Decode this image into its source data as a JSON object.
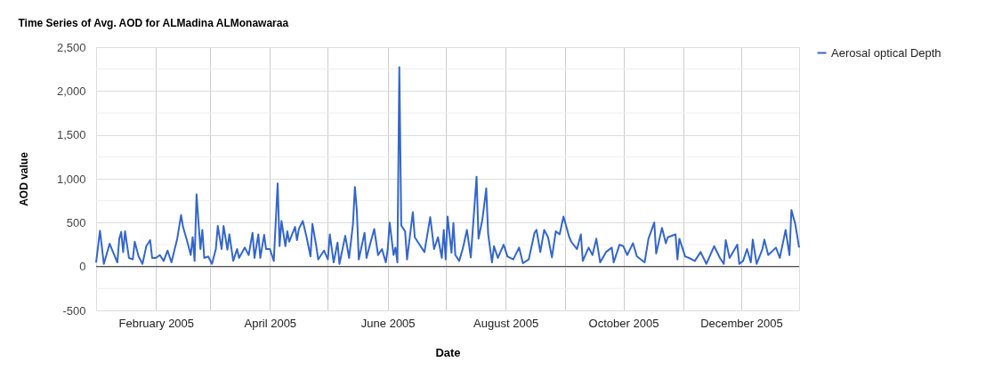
{
  "chart_data": {
    "type": "line",
    "title": "Time Series of Avg. AOD for ALMadina ALMonawaraa",
    "xlabel": "Date",
    "ylabel": "AOD value",
    "xlim": [
      "2005-01-01",
      "2005-12-31"
    ],
    "xticks": [
      {
        "value": "2005-02-01",
        "label": "February 2005"
      },
      {
        "value": "2005-03-01",
        "label": null
      },
      {
        "value": "2005-04-01",
        "label": "April 2005"
      },
      {
        "value": "2005-05-01",
        "label": null
      },
      {
        "value": "2005-06-01",
        "label": "June 2005"
      },
      {
        "value": "2005-07-01",
        "label": null
      },
      {
        "value": "2005-08-01",
        "label": "August 2005"
      },
      {
        "value": "2005-09-01",
        "label": null
      },
      {
        "value": "2005-10-01",
        "label": "October 2005"
      },
      {
        "value": "2005-11-01",
        "label": null
      },
      {
        "value": "2005-12-01",
        "label": "December 2005"
      }
    ],
    "ylim": [
      -500,
      2500
    ],
    "yticks": [
      {
        "value": -500,
        "label": "-500"
      },
      {
        "value": -250,
        "label": null
      },
      0,
      {
        "value": 250,
        "label": null
      },
      500,
      {
        "value": 750,
        "label": null
      },
      {
        "value": 1000,
        "label": "1,000"
      },
      {
        "value": 1250,
        "label": null
      },
      {
        "value": 1500,
        "label": "1,500"
      },
      {
        "value": 1750,
        "label": null
      },
      {
        "value": 2000,
        "label": "2,000"
      },
      {
        "value": 2250,
        "label": null
      },
      {
        "value": 2500,
        "label": "2,500"
      }
    ],
    "grid": true,
    "legend": "top right",
    "line_style": "solid",
    "ref_lines": [
      {
        "axis": "y",
        "value": 0,
        "color": "#333333"
      }
    ],
    "x": [
      "2005-01-01",
      "2005-01-03",
      "2005-01-05",
      "2005-01-07",
      "2005-01-08",
      "2005-01-12",
      "2005-01-13",
      "2005-01-14",
      "2005-01-15",
      "2005-01-16",
      "2005-01-18",
      "2005-01-20",
      "2005-01-21",
      "2005-01-23",
      "2005-01-25",
      "2005-01-27",
      "2005-01-29",
      "2005-01-30",
      "2005-02-01",
      "2005-02-03",
      "2005-02-05",
      "2005-02-07",
      "2005-02-09",
      "2005-02-12",
      "2005-02-14",
      "2005-02-15",
      "2005-02-17",
      "2005-02-19",
      "2005-02-20",
      "2005-02-21",
      "2005-02-22",
      "2005-02-24",
      "2005-02-25",
      "2005-02-26",
      "2005-02-28",
      "2005-03-02",
      "2005-03-04",
      "2005-03-05",
      "2005-03-07",
      "2005-03-08",
      "2005-03-10",
      "2005-03-11",
      "2005-03-13",
      "2005-03-15",
      "2005-03-16",
      "2005-03-19",
      "2005-03-21",
      "2005-03-23",
      "2005-03-24",
      "2005-03-26",
      "2005-03-27",
      "2005-03-29",
      "2005-03-30",
      "2005-04-01",
      "2005-04-03",
      "2005-04-05",
      "2005-04-06",
      "2005-04-07",
      "2005-04-09",
      "2005-04-10",
      "2005-04-11",
      "2005-04-14",
      "2005-04-15",
      "2005-04-16",
      "2005-04-18",
      "2005-04-20",
      "2005-04-22",
      "2005-04-23",
      "2005-04-25",
      "2005-04-26",
      "2005-04-29",
      "2005-05-01",
      "2005-05-02",
      "2005-05-04",
      "2005-05-06",
      "2005-05-07",
      "2005-05-10",
      "2005-05-12",
      "2005-05-14",
      "2005-05-15",
      "2005-05-16",
      "2005-05-17",
      "2005-05-20",
      "2005-05-21",
      "2005-05-23",
      "2005-05-25",
      "2005-05-27",
      "2005-05-29",
      "2005-05-31",
      "2005-06-01",
      "2005-06-02",
      "2005-06-04",
      "2005-06-05",
      "2005-06-06",
      "2005-06-07",
      "2005-06-08",
      "2005-06-10",
      "2005-06-11",
      "2005-06-14",
      "2005-06-15",
      "2005-06-17",
      "2005-06-20",
      "2005-06-23",
      "2005-06-25",
      "2005-06-27",
      "2005-06-29",
      "2005-06-30",
      "2005-07-01",
      "2005-07-02",
      "2005-07-04",
      "2005-07-05",
      "2005-07-06",
      "2005-07-08",
      "2005-07-10",
      "2005-07-12",
      "2005-07-14",
      "2005-07-17",
      "2005-07-18",
      "2005-07-20",
      "2005-07-22",
      "2005-07-23",
      "2005-07-25",
      "2005-07-26",
      "2005-07-28",
      "2005-07-31",
      "2005-08-02",
      "2005-08-05",
      "2005-08-08",
      "2005-08-10",
      "2005-08-13",
      "2005-08-16",
      "2005-08-17",
      "2005-08-19",
      "2005-08-21",
      "2005-08-23",
      "2005-08-25",
      "2005-08-27",
      "2005-08-29",
      "2005-08-31",
      "2005-09-03",
      "2005-09-04",
      "2005-09-07",
      "2005-09-09",
      "2005-09-10",
      "2005-09-13",
      "2005-09-15",
      "2005-09-17",
      "2005-09-19",
      "2005-09-22",
      "2005-09-25",
      "2005-09-26",
      "2005-09-29",
      "2005-10-01",
      "2005-10-03",
      "2005-10-06",
      "2005-10-08",
      "2005-10-12",
      "2005-10-14",
      "2005-10-17",
      "2005-10-18",
      "2005-10-21",
      "2005-10-23",
      "2005-10-24",
      "2005-10-28",
      "2005-10-29",
      "2005-10-30",
      "2005-11-02",
      "2005-11-04",
      "2005-11-07",
      "2005-11-10",
      "2005-11-13",
      "2005-11-17",
      "2005-11-20",
      "2005-11-22",
      "2005-11-23",
      "2005-11-25",
      "2005-11-29",
      "2005-11-30",
      "2005-12-02",
      "2005-12-04",
      "2005-12-06",
      "2005-12-07",
      "2005-12-09",
      "2005-12-12",
      "2005-12-13",
      "2005-12-15",
      "2005-12-19",
      "2005-12-21",
      "2005-12-22",
      "2005-12-24",
      "2005-12-26",
      "2005-12-27",
      "2005-12-29",
      "2005-12-31"
    ],
    "series": [
      {
        "name": "Aerosal optical Depth",
        "color": "#3366cc",
        "values": [
          47,
          408,
          30,
          182,
          260,
          47,
          317,
          394,
          165,
          401,
          98,
          81,
          283,
          115,
          30,
          232,
          300,
          98,
          98,
          131,
          64,
          182,
          47,
          317,
          586,
          452,
          300,
          131,
          334,
          64,
          822,
          199,
          418,
          98,
          115,
          30,
          199,
          462,
          199,
          462,
          192,
          367,
          64,
          199,
          98,
          216,
          131,
          384,
          98,
          367,
          98,
          361,
          199,
          199,
          64,
          947,
          232,
          519,
          232,
          401,
          283,
          452,
          300,
          428,
          519,
          334,
          115,
          485,
          232,
          81,
          182,
          81,
          367,
          47,
          273,
          30,
          350,
          98,
          485,
          907,
          637,
          81,
          384,
          98,
          266,
          428,
          131,
          199,
          47,
          199,
          502,
          131,
          216,
          47,
          2271,
          468,
          401,
          81,
          620,
          334,
          266,
          165,
          563,
          199,
          334,
          98,
          418,
          81,
          570,
          158,
          495,
          131,
          64,
          216,
          418,
          104,
          1024,
          317,
          536,
          890,
          367,
          47,
          232,
          98,
          249,
          115,
          81,
          216,
          37,
          81,
          384,
          418,
          165,
          418,
          334,
          104,
          401,
          367,
          570,
          334,
          283,
          199,
          367,
          64,
          216,
          131,
          317,
          47,
          165,
          216,
          47,
          249,
          232,
          131,
          266,
          115,
          47,
          317,
          502,
          148,
          441,
          266,
          334,
          367,
          81,
          317,
          115,
          98,
          64,
          165,
          30,
          232,
          98,
          30,
          300,
          98,
          249,
          30,
          64,
          199,
          47,
          307,
          30,
          199,
          307,
          131,
          216,
          98,
          206,
          418,
          131,
          644,
          485,
          216
        ]
      }
    ]
  }
}
